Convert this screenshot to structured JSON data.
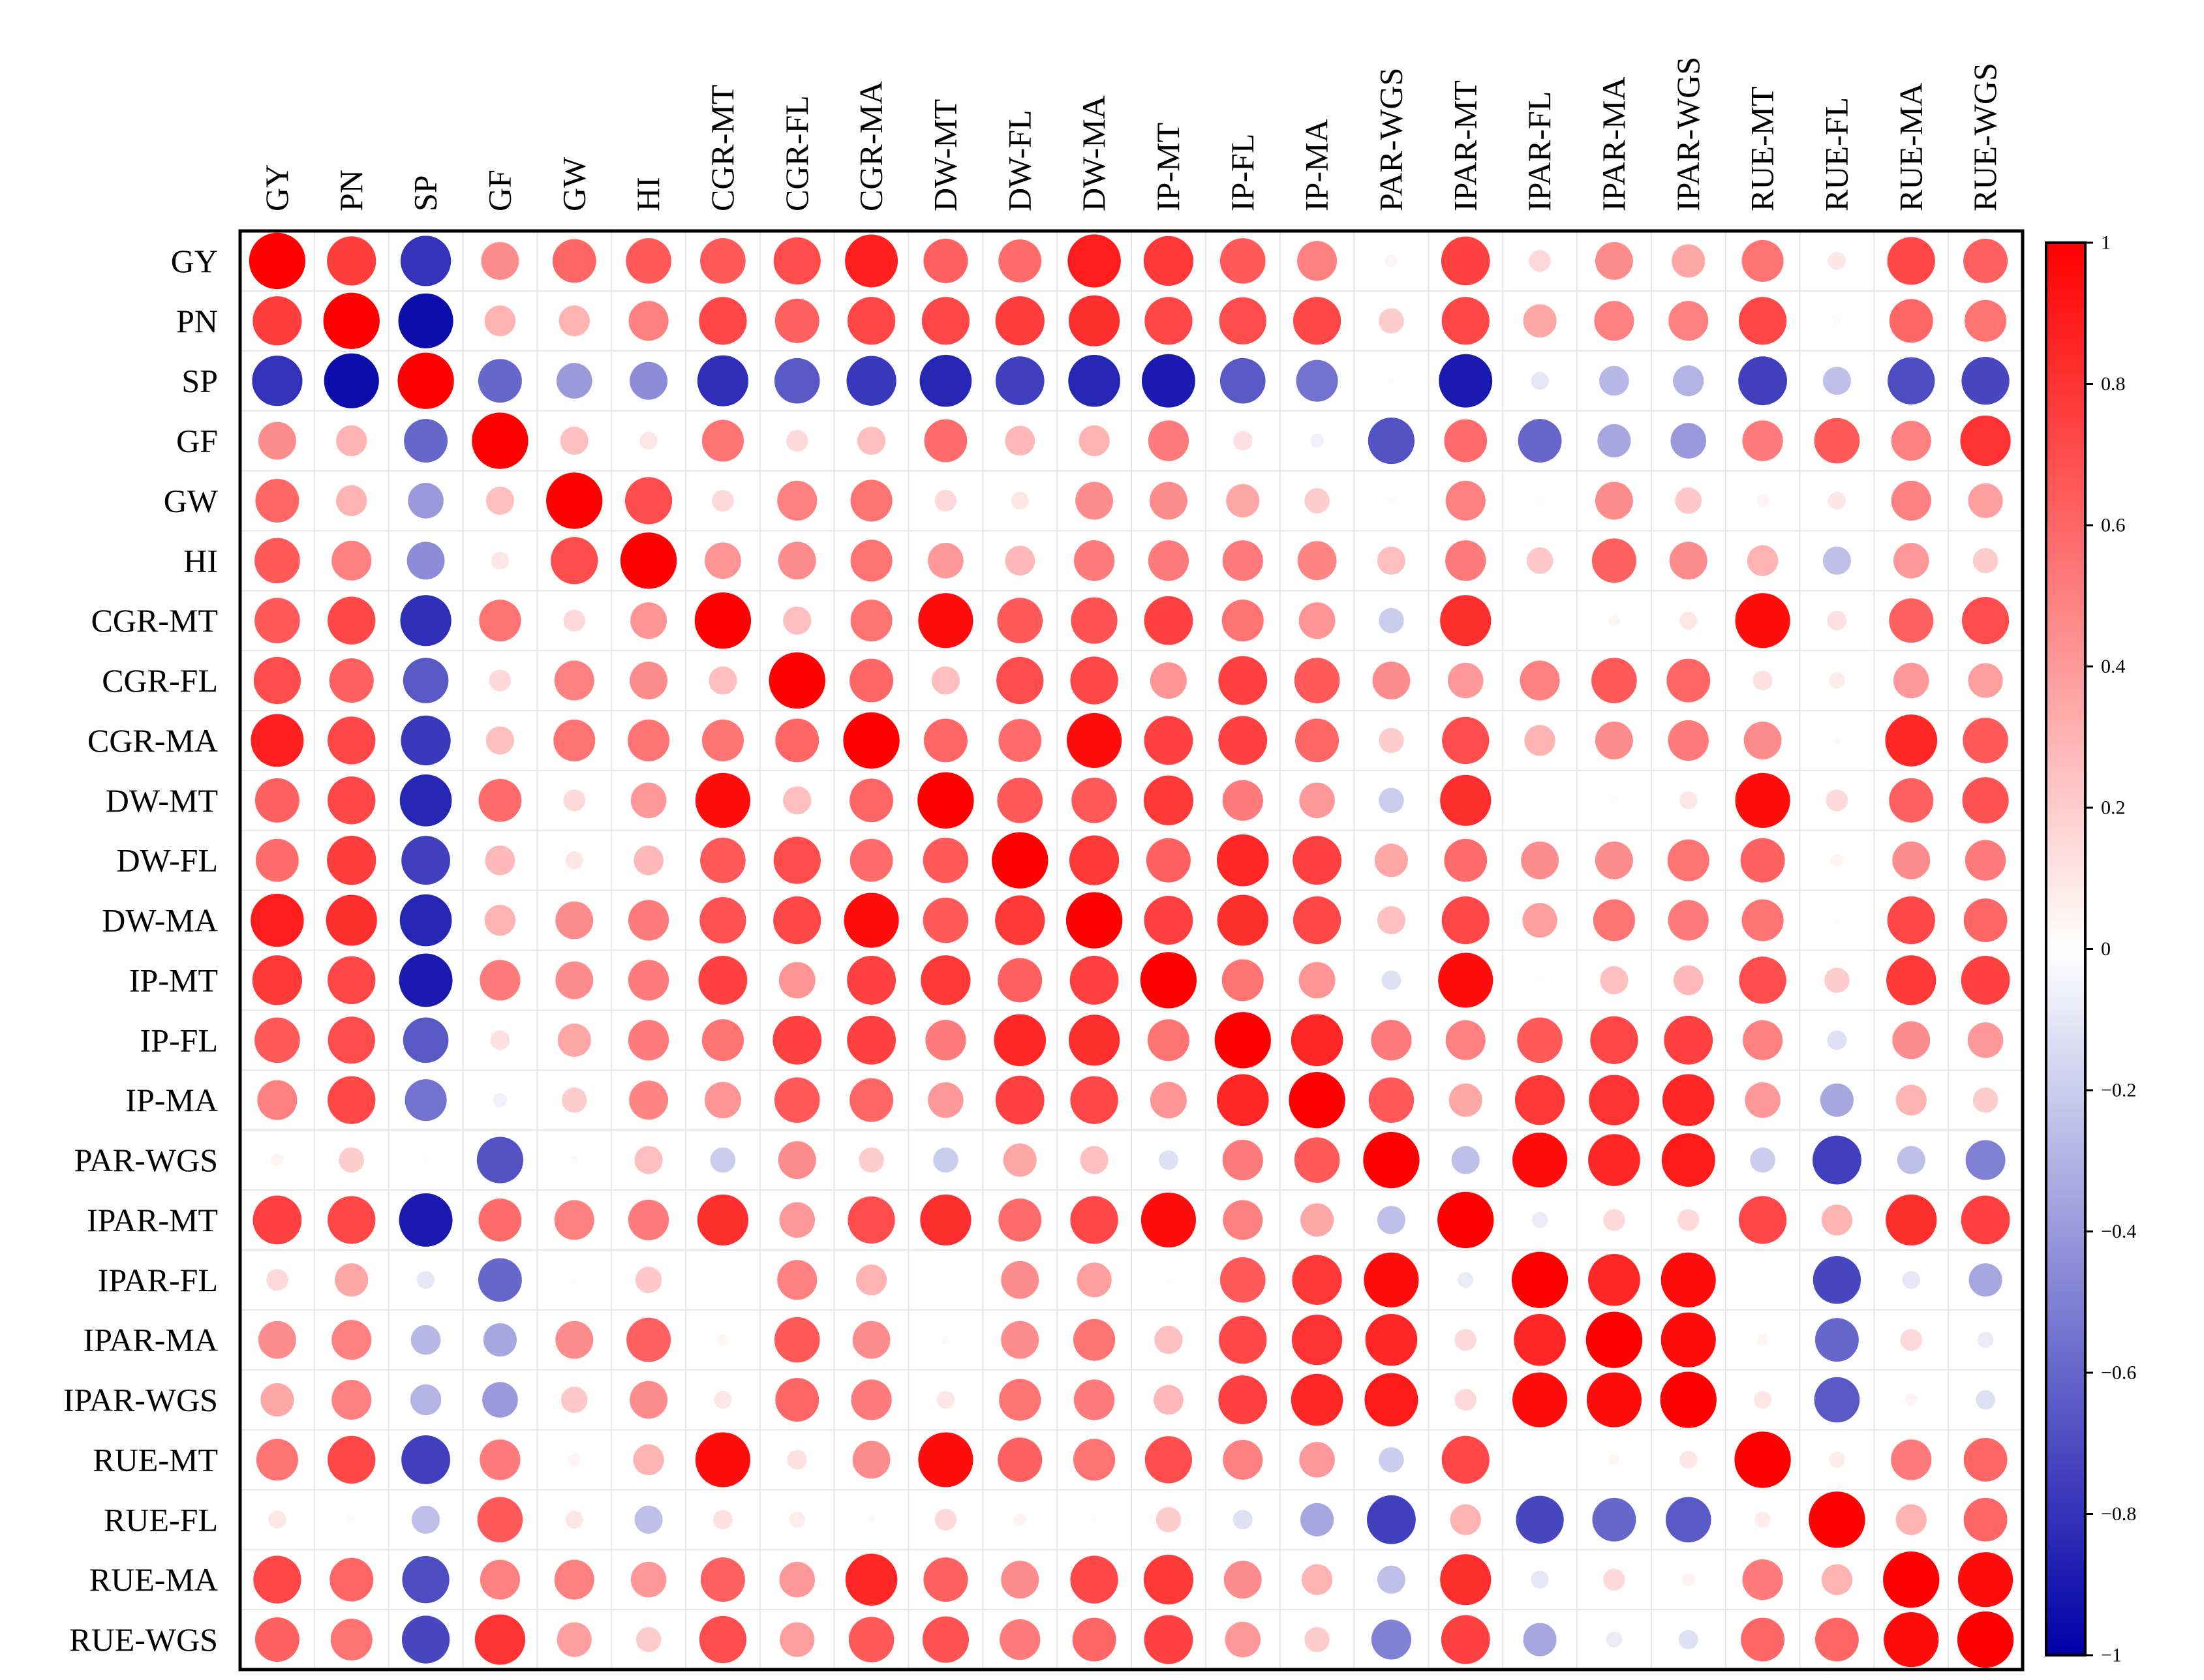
{
  "chart_data": {
    "type": "heatmap",
    "title": "",
    "variables": [
      "GY",
      "PN",
      "SP",
      "GF",
      "GW",
      "HI",
      "CGR-MT",
      "CGR-FL",
      "CGR-MA",
      "DW-MT",
      "DW-FL",
      "DW-MA",
      "IP-MT",
      "IP-FL",
      "IP-MA",
      "PAR-WGS",
      "IPAR-MT",
      "IPAR-FL",
      "IPAR-MA",
      "IPAR-WGS",
      "RUE-MT",
      "RUE-FL",
      "RUE-MA",
      "RUE-WGS"
    ],
    "matrix": [
      [
        1.0,
        0.76,
        -0.8,
        0.45,
        0.6,
        0.65,
        0.65,
        0.7,
        0.88,
        0.62,
        0.58,
        0.89,
        0.78,
        0.65,
        0.5,
        0.05,
        0.75,
        0.15,
        0.45,
        0.35,
        0.55,
        0.1,
        0.72,
        0.62
      ],
      [
        0.76,
        1.0,
        -0.95,
        0.3,
        0.3,
        0.5,
        0.72,
        0.62,
        0.72,
        0.72,
        0.76,
        0.82,
        0.72,
        0.7,
        0.72,
        0.2,
        0.72,
        0.35,
        0.5,
        0.5,
        0.72,
        0.02,
        0.6,
        0.55
      ],
      [
        -0.8,
        -0.95,
        1.0,
        -0.6,
        -0.4,
        -0.45,
        -0.82,
        -0.65,
        -0.78,
        -0.85,
        -0.75,
        -0.85,
        -0.9,
        -0.65,
        -0.55,
        0.01,
        -0.9,
        -0.1,
        -0.28,
        -0.3,
        -0.75,
        -0.25,
        -0.7,
        -0.72
      ],
      [
        0.45,
        0.3,
        -0.6,
        1.0,
        0.25,
        0.1,
        0.55,
        0.15,
        0.25,
        0.58,
        0.28,
        0.3,
        0.52,
        0.12,
        -0.06,
        -0.68,
        0.58,
        -0.6,
        -0.35,
        -0.4,
        0.52,
        0.65,
        0.5,
        0.8
      ],
      [
        0.6,
        0.3,
        -0.4,
        0.25,
        1.0,
        0.7,
        0.15,
        0.5,
        0.55,
        0.15,
        0.1,
        0.45,
        0.45,
        0.35,
        0.2,
        0.02,
        0.5,
        0.01,
        0.45,
        0.22,
        0.05,
        0.1,
        0.5,
        0.38
      ],
      [
        0.65,
        0.5,
        -0.45,
        0.1,
        0.7,
        1.0,
        0.42,
        0.45,
        0.55,
        0.4,
        0.28,
        0.52,
        0.52,
        0.52,
        0.48,
        0.25,
        0.52,
        0.22,
        0.62,
        0.45,
        0.3,
        -0.25,
        0.4,
        0.2
      ],
      [
        0.65,
        0.72,
        -0.82,
        0.55,
        0.15,
        0.42,
        1.0,
        0.25,
        0.55,
        0.95,
        0.65,
        0.68,
        0.75,
        0.55,
        0.42,
        -0.2,
        0.82,
        0.0,
        0.04,
        0.1,
        0.95,
        0.12,
        0.62,
        0.7
      ],
      [
        0.7,
        0.62,
        -0.65,
        0.15,
        0.5,
        0.45,
        0.25,
        1.0,
        0.6,
        0.25,
        0.7,
        0.72,
        0.42,
        0.75,
        0.65,
        0.45,
        0.4,
        0.5,
        0.65,
        0.6,
        0.12,
        0.08,
        0.4,
        0.38
      ],
      [
        0.88,
        0.72,
        -0.78,
        0.25,
        0.55,
        0.55,
        0.55,
        0.6,
        1.0,
        0.6,
        0.58,
        0.95,
        0.75,
        0.75,
        0.6,
        0.2,
        0.7,
        0.3,
        0.45,
        0.52,
        0.45,
        0.02,
        0.85,
        0.65
      ],
      [
        0.62,
        0.72,
        -0.85,
        0.58,
        0.15,
        0.4,
        0.95,
        0.25,
        0.6,
        1.0,
        0.65,
        0.65,
        0.78,
        0.52,
        0.4,
        -0.2,
        0.82,
        0.0,
        0.02,
        0.1,
        0.95,
        0.15,
        0.62,
        0.68
      ],
      [
        0.58,
        0.76,
        -0.75,
        0.28,
        0.1,
        0.28,
        0.65,
        0.7,
        0.58,
        0.65,
        1.0,
        0.78,
        0.62,
        0.85,
        0.75,
        0.35,
        0.58,
        0.45,
        0.45,
        0.55,
        0.62,
        0.05,
        0.45,
        0.52
      ],
      [
        0.89,
        0.82,
        -0.85,
        0.3,
        0.45,
        0.52,
        0.68,
        0.72,
        0.95,
        0.65,
        0.78,
        1.0,
        0.75,
        0.82,
        0.72,
        0.25,
        0.72,
        0.38,
        0.55,
        0.52,
        0.55,
        0.01,
        0.72,
        0.6
      ],
      [
        0.78,
        0.72,
        -0.9,
        0.52,
        0.45,
        0.52,
        0.75,
        0.42,
        0.75,
        0.78,
        0.62,
        0.75,
        1.0,
        0.55,
        0.42,
        -0.12,
        0.95,
        0.01,
        0.25,
        0.28,
        0.7,
        0.2,
        0.78,
        0.75
      ],
      [
        0.65,
        0.7,
        -0.65,
        0.12,
        0.35,
        0.52,
        0.55,
        0.75,
        0.75,
        0.52,
        0.85,
        0.82,
        0.55,
        1.0,
        0.85,
        0.52,
        0.5,
        0.65,
        0.72,
        0.75,
        0.5,
        -0.12,
        0.45,
        0.4
      ],
      [
        0.5,
        0.72,
        -0.55,
        -0.06,
        0.2,
        0.48,
        0.42,
        0.65,
        0.6,
        0.4,
        0.75,
        0.72,
        0.42,
        0.85,
        1.0,
        0.65,
        0.35,
        0.78,
        0.8,
        0.85,
        0.4,
        -0.35,
        0.3,
        0.2
      ],
      [
        0.05,
        0.2,
        0.01,
        -0.68,
        0.02,
        0.25,
        -0.2,
        0.45,
        0.2,
        -0.2,
        0.35,
        0.25,
        -0.12,
        0.52,
        0.65,
        1.0,
        -0.25,
        0.95,
        0.85,
        0.9,
        -0.2,
        -0.75,
        -0.25,
        -0.5
      ],
      [
        0.75,
        0.72,
        -0.9,
        0.58,
        0.5,
        0.52,
        0.82,
        0.4,
        0.7,
        0.82,
        0.58,
        0.72,
        0.95,
        0.5,
        0.35,
        -0.25,
        1.0,
        -0.08,
        0.15,
        0.15,
        0.72,
        0.3,
        0.82,
        0.75
      ],
      [
        0.15,
        0.35,
        -0.1,
        -0.6,
        0.01,
        0.22,
        0.0,
        0.5,
        0.3,
        0.0,
        0.45,
        0.38,
        0.01,
        0.65,
        0.78,
        0.95,
        -0.08,
        1.0,
        0.85,
        0.95,
        0.0,
        -0.72,
        -0.1,
        -0.35
      ],
      [
        0.45,
        0.5,
        -0.28,
        -0.35,
        0.45,
        0.62,
        0.04,
        0.65,
        0.45,
        0.02,
        0.45,
        0.55,
        0.25,
        0.72,
        0.8,
        0.85,
        0.15,
        0.85,
        1.0,
        0.95,
        0.04,
        -0.6,
        0.15,
        -0.08
      ],
      [
        0.35,
        0.5,
        -0.3,
        -0.4,
        0.22,
        0.45,
        0.1,
        0.6,
        0.52,
        0.1,
        0.55,
        0.52,
        0.28,
        0.75,
        0.85,
        0.9,
        0.15,
        0.95,
        0.95,
        1.0,
        0.1,
        -0.65,
        0.05,
        -0.12
      ],
      [
        0.55,
        0.72,
        -0.75,
        0.52,
        0.05,
        0.3,
        0.95,
        0.12,
        0.45,
        0.95,
        0.62,
        0.55,
        0.7,
        0.5,
        0.4,
        -0.2,
        0.72,
        0.0,
        0.04,
        0.1,
        1.0,
        0.08,
        0.52,
        0.6
      ],
      [
        0.1,
        0.02,
        -0.25,
        0.65,
        0.1,
        -0.25,
        0.12,
        0.08,
        0.02,
        0.15,
        0.05,
        0.01,
        0.2,
        -0.12,
        -0.35,
        -0.75,
        0.3,
        -0.72,
        -0.6,
        -0.65,
        0.08,
        1.0,
        0.3,
        0.6
      ],
      [
        0.72,
        0.6,
        -0.7,
        0.5,
        0.5,
        0.4,
        0.62,
        0.4,
        0.85,
        0.62,
        0.45,
        0.72,
        0.78,
        0.45,
        0.3,
        -0.25,
        0.82,
        -0.1,
        0.15,
        0.05,
        0.52,
        0.3,
        1.0,
        0.95
      ],
      [
        0.62,
        0.55,
        -0.72,
        0.8,
        0.38,
        0.2,
        0.7,
        0.38,
        0.65,
        0.68,
        0.52,
        0.6,
        0.75,
        0.4,
        0.2,
        -0.5,
        0.75,
        -0.35,
        -0.08,
        -0.12,
        0.6,
        0.6,
        0.95,
        1.0
      ]
    ],
    "colorbar": {
      "min": -1,
      "max": 1,
      "ticks": [
        "1",
        "0.8",
        "0.6",
        "0.4",
        "0.2",
        "0",
        "−0.2",
        "−0.4",
        "−0.6",
        "−0.8",
        "−1"
      ],
      "tick_values": [
        1,
        0.8,
        0.6,
        0.4,
        0.2,
        0,
        -0.2,
        -0.4,
        -0.6,
        -0.8,
        -1
      ],
      "colors": {
        "negative": "#0000a8",
        "zero": "#ffffff",
        "positive": "#ff0000"
      }
    },
    "grid": true
  }
}
